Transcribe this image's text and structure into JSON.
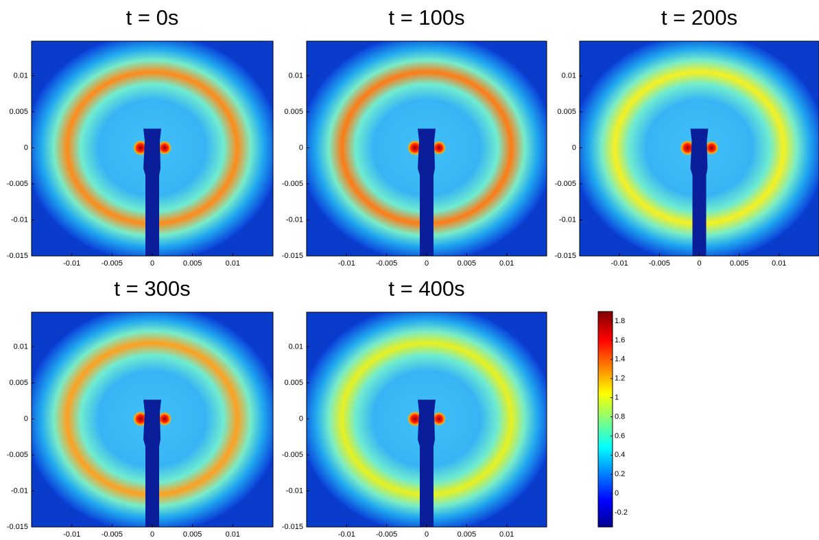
{
  "chart_data": [
    {
      "type": "heatmap",
      "title": "t = 0s",
      "ring_color": "#ff8a1a",
      "xlim": [
        -0.015,
        0.015
      ],
      "ylim": [
        -0.015,
        0.0148
      ],
      "xticks": [
        -0.01,
        -0.005,
        0,
        0.005,
        0.01
      ],
      "yticks": [
        0.01,
        0.005,
        0,
        -0.005,
        -0.01,
        -0.015
      ]
    },
    {
      "type": "heatmap",
      "title": "t = 100s",
      "ring_color": "#ff7a14",
      "xlim": [
        -0.015,
        0.015
      ],
      "ylim": [
        -0.015,
        0.0148
      ],
      "xticks": [
        -0.01,
        -0.005,
        0,
        0.005,
        0.01
      ],
      "yticks": [
        0.01,
        0.005,
        0,
        -0.005,
        -0.01,
        -0.015
      ]
    },
    {
      "type": "heatmap",
      "title": "t = 200s",
      "ring_color": "#f6f020",
      "xlim": [
        -0.015,
        0.015
      ],
      "ylim": [
        -0.015,
        0.0148
      ],
      "xticks": [
        -0.01,
        -0.005,
        0,
        0.005,
        0.01
      ],
      "yticks": [
        0.01,
        0.005,
        0,
        -0.005,
        -0.01,
        -0.015
      ]
    },
    {
      "type": "heatmap",
      "title": "t = 300s",
      "ring_color": "#ffa020",
      "xlim": [
        -0.015,
        0.015
      ],
      "ylim": [
        -0.015,
        0.0148
      ],
      "xticks": [
        -0.01,
        -0.005,
        0,
        0.005,
        0.01
      ],
      "yticks": [
        0.01,
        0.005,
        0,
        -0.005,
        -0.01,
        -0.015
      ]
    },
    {
      "type": "heatmap",
      "title": "t = 400s",
      "ring_color": "#e8f020",
      "xlim": [
        -0.015,
        0.015
      ],
      "ylim": [
        -0.015,
        0.0148
      ],
      "xticks": [
        -0.01,
        -0.005,
        0,
        0.005,
        0.01
      ],
      "yticks": [
        0.01,
        0.005,
        0,
        -0.005,
        -0.01,
        -0.015
      ]
    },
    {
      "type": "colorbar",
      "ylim": [
        -0.35,
        1.9
      ],
      "yticks": [
        -0.2,
        0,
        0.2,
        0.4,
        0.6,
        0.8,
        1,
        1.2,
        1.4,
        1.6,
        1.8
      ]
    }
  ]
}
